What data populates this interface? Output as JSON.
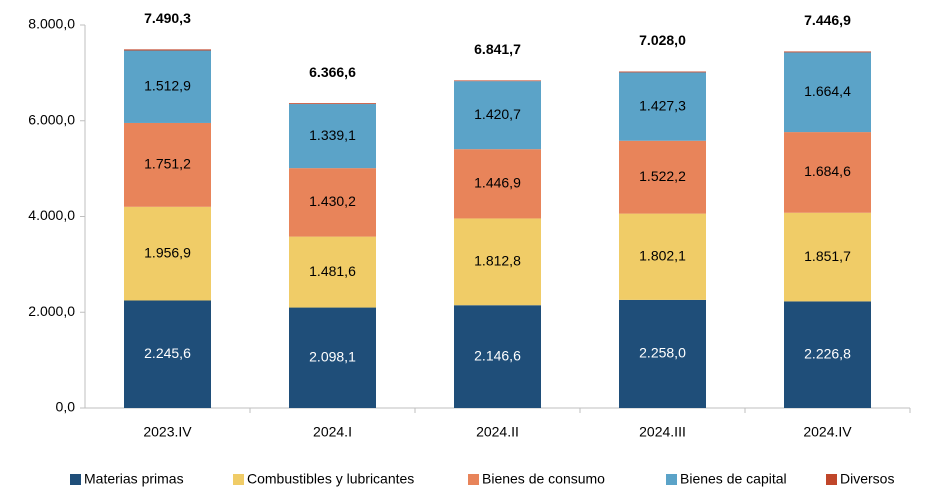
{
  "chart_data": {
    "type": "stacked_bar",
    "categories": [
      "2023.IV",
      "2024.I",
      "2024.II",
      "2024.III",
      "2024.IV"
    ],
    "series": [
      {
        "name": "Materias primas",
        "color": "#1f4e79",
        "values": [
          2245.6,
          2098.1,
          2146.6,
          2258.0,
          2226.8
        ],
        "value_labels": [
          "2.245,6",
          "2.098,1",
          "2.146,6",
          "2.258,0",
          "2.226,8"
        ]
      },
      {
        "name": "Combustibles y lubricantes",
        "color": "#f0cc67",
        "values": [
          1956.9,
          1481.6,
          1812.8,
          1802.1,
          1851.7
        ],
        "value_labels": [
          "1.956,9",
          "1.481,6",
          "1.812,8",
          "1.802,1",
          "1.851,7"
        ]
      },
      {
        "name": "Bienes de consumo",
        "color": "#e8845a",
        "values": [
          1751.2,
          1430.2,
          1446.9,
          1522.2,
          1684.6
        ],
        "value_labels": [
          "1.751,2",
          "1.430,2",
          "1.446,9",
          "1.522,2",
          "1.684,6"
        ]
      },
      {
        "name": "Bienes de capital",
        "color": "#5ba3c8",
        "values": [
          1512.9,
          1339.1,
          1420.7,
          1427.3,
          1664.4
        ],
        "value_labels": [
          "1.512,9",
          "1.339,1",
          "1.420,7",
          "1.427,3",
          "1.664,4"
        ]
      },
      {
        "name": "Diversos",
        "color": "#c0462a",
        "values": [
          23.7,
          17.6,
          14.7,
          18.4,
          19.4
        ]
      }
    ],
    "totals": [
      7490.3,
      6366.6,
      6841.7,
      7028.0,
      7446.9
    ],
    "total_labels": [
      "7.490,3",
      "6.366,6",
      "6.841,7",
      "7.028,0",
      "7.446,9"
    ],
    "ylim": [
      0,
      8000
    ],
    "yticks": [
      {
        "value": 0,
        "label": "0,0"
      },
      {
        "value": 2000,
        "label": "2.000,0"
      },
      {
        "value": 4000,
        "label": "4.000,0"
      },
      {
        "value": 6000,
        "label": "6.000,0"
      },
      {
        "value": 8000,
        "label": "8.000,0"
      }
    ],
    "grid": false,
    "legend": "bottom"
  }
}
